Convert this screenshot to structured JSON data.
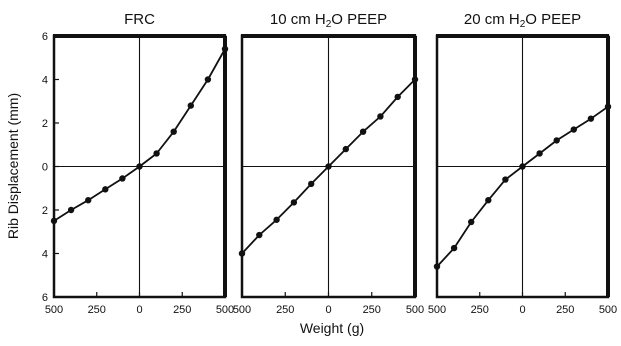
{
  "chart_data": {
    "type": "line",
    "xlabel": "Weight (g)",
    "ylabel": "Rib Displacement (mm)",
    "xlim": [
      -500,
      500
    ],
    "ylim": [
      -6,
      6
    ],
    "x_tick_values": [
      -500,
      -250,
      0,
      250,
      500
    ],
    "x_tick_labels": [
      "500",
      "250",
      "0",
      "250",
      "500"
    ],
    "y_tick_values": [
      6,
      4,
      2,
      0,
      -2,
      -4,
      -6
    ],
    "y_tick_labels": [
      "6",
      "4",
      "2",
      "0",
      "2",
      "4",
      "6"
    ],
    "panels": [
      {
        "title_parts": [
          "FRC"
        ],
        "x": [
          -500,
          -400,
          -300,
          -200,
          -100,
          0,
          100,
          200,
          300,
          400,
          500
        ],
        "y": [
          -2.5,
          -2.0,
          -1.55,
          -1.05,
          -0.55,
          0.0,
          0.6,
          1.6,
          2.8,
          4.0,
          5.4
        ]
      },
      {
        "title_parts": [
          "10 cm H",
          "2",
          "O PEEP"
        ],
        "x": [
          -500,
          -400,
          -300,
          -200,
          -100,
          0,
          100,
          200,
          300,
          400,
          500
        ],
        "y": [
          -4.0,
          -3.15,
          -2.45,
          -1.65,
          -0.8,
          0.0,
          0.8,
          1.6,
          2.3,
          3.2,
          4.0
        ]
      },
      {
        "title_parts": [
          "20 cm H",
          "2",
          "O PEEP"
        ],
        "x": [
          -500,
          -400,
          -300,
          -200,
          -100,
          0,
          100,
          200,
          300,
          400,
          500
        ],
        "y": [
          -4.6,
          -3.75,
          -2.55,
          -1.55,
          -0.6,
          0.0,
          0.6,
          1.2,
          1.7,
          2.2,
          2.75
        ]
      }
    ]
  }
}
